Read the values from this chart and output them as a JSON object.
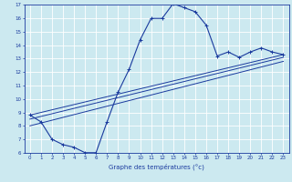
{
  "bg_color": "#cce9f0",
  "line_color": "#1a3a9e",
  "grid_color": "#ffffff",
  "xlim": [
    -0.5,
    23.5
  ],
  "ylim": [
    6,
    17
  ],
  "xticks": [
    0,
    1,
    2,
    3,
    4,
    5,
    6,
    7,
    8,
    9,
    10,
    11,
    12,
    13,
    14,
    15,
    16,
    17,
    18,
    19,
    20,
    21,
    22,
    23
  ],
  "yticks": [
    6,
    7,
    8,
    9,
    10,
    11,
    12,
    13,
    14,
    15,
    16,
    17
  ],
  "curve1_x": [
    0,
    1,
    2,
    3,
    4,
    5,
    6,
    7,
    8,
    9,
    10,
    11,
    12,
    13,
    14,
    15,
    16,
    17,
    18,
    19,
    20,
    21,
    22,
    23
  ],
  "curve1_y": [
    8.8,
    8.3,
    7.0,
    6.6,
    6.4,
    6.0,
    6.0,
    8.3,
    10.5,
    12.2,
    14.4,
    16.0,
    16.0,
    17.1,
    16.8,
    16.5,
    15.5,
    13.2,
    13.5,
    13.1,
    13.5,
    13.8,
    13.5,
    13.3
  ],
  "line1_x": [
    0,
    23
  ],
  "line1_y": [
    8.8,
    13.3
  ],
  "line2_x": [
    0,
    23
  ],
  "line2_y": [
    8.5,
    13.1
  ],
  "line3_x": [
    0,
    23
  ],
  "line3_y": [
    8.0,
    12.8
  ],
  "xlabel": "Graphe des températures (°c)"
}
